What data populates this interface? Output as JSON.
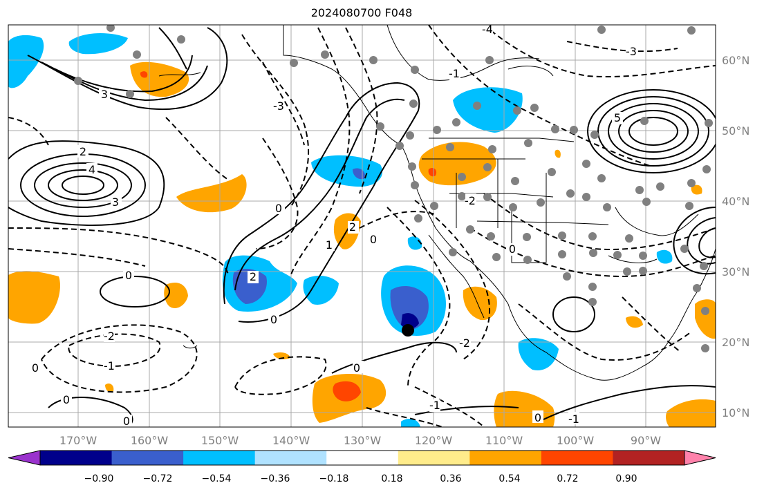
{
  "title": "2024080700 F048",
  "map": {
    "lon_labels": [
      "170°W",
      "160°W",
      "150°W",
      "140°W",
      "130°W",
      "120°W",
      "110°W",
      "100°W",
      "90°W"
    ],
    "lat_labels": [
      "60°N",
      "50°N",
      "40°N",
      "30°N",
      "20°N",
      "10°N"
    ],
    "contour_labels": [
      "0",
      "0",
      "0",
      "0",
      "0",
      "0",
      "0",
      "0",
      "-1",
      "-2",
      "2",
      "2",
      "4",
      "3",
      "-3",
      "3",
      "-3",
      "-4",
      "5",
      "-1",
      "-2",
      "2",
      "1",
      "-1",
      "0",
      "-1",
      "0",
      "-2"
    ]
  },
  "colorbar": {
    "ticks": [
      "−0.90",
      "−0.72",
      "−0.54",
      "−0.36",
      "−0.18",
      "0.18",
      "0.36",
      "0.54",
      "0.72",
      "0.90"
    ],
    "colors": [
      "#9a32cd",
      "#00008b",
      "#3a5fcd",
      "#00bfff",
      "#b0e2ff",
      "#ffffff",
      "#ffec8b",
      "#ffa500",
      "#ff4500",
      "#b22222",
      "#ff82ab"
    ]
  }
}
